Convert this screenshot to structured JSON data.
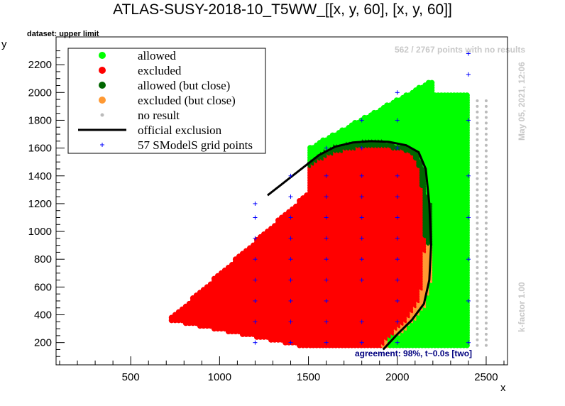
{
  "chart_data": {
    "type": "scatter",
    "title": "ATLAS-SUSY-2018-10_T5WW_[[x, y, 60], [x, y, 60]]",
    "dataset_label": "dataset: upper limit",
    "xlabel": "x",
    "ylabel": "y",
    "xlim": [
      80,
      2620
    ],
    "ylim": [
      40,
      2400
    ],
    "x_ticks": [
      500,
      1000,
      1500,
      2000,
      2500
    ],
    "y_ticks": [
      200,
      400,
      600,
      800,
      1000,
      1200,
      1400,
      1600,
      1800,
      2000,
      2200
    ],
    "side_text_top": "May 05, 2021, 12:06",
    "side_text_bottom": "k-factor 1.00",
    "no_result_text": "562 / 2767 points with no results",
    "agreement_text": "agreement: 98%, t~0.0s [two]",
    "legend": [
      {
        "label": "allowed",
        "color": "#00ff00"
      },
      {
        "label": "excluded",
        "color": "#ff0000"
      },
      {
        "label": "allowed (but close)",
        "color": "#006600"
      },
      {
        "label": "excluded (but close)",
        "color": "#ff9933"
      },
      {
        "label": "no result",
        "color": "#bbbbbb"
      },
      {
        "label": "official exclusion",
        "color": "#000000"
      },
      {
        "label": "57 SModelS grid points",
        "color": "#0000ff"
      }
    ],
    "official_exclusion": [
      [
        1270,
        1260
      ],
      [
        1350,
        1340
      ],
      [
        1450,
        1440
      ],
      [
        1560,
        1550
      ],
      [
        1650,
        1610
      ],
      [
        1750,
        1640
      ],
      [
        1850,
        1650
      ],
      [
        1950,
        1645
      ],
      [
        2050,
        1620
      ],
      [
        2120,
        1570
      ],
      [
        2160,
        1450
      ],
      [
        2180,
        1200
      ],
      [
        2190,
        900
      ],
      [
        2180,
        650
      ],
      [
        2150,
        480
      ],
      [
        2080,
        360
      ],
      [
        2000,
        260
      ],
      [
        1920,
        150
      ]
    ],
    "grid_points": [
      [
        1200,
        200
      ],
      [
        1200,
        350
      ],
      [
        1200,
        500
      ],
      [
        1200,
        650
      ],
      [
        1200,
        800
      ],
      [
        1200,
        950
      ],
      [
        1200,
        1100
      ],
      [
        1200,
        1200
      ],
      [
        1400,
        200
      ],
      [
        1400,
        350
      ],
      [
        1400,
        500
      ],
      [
        1400,
        650
      ],
      [
        1400,
        800
      ],
      [
        1400,
        950
      ],
      [
        1400,
        1100
      ],
      [
        1400,
        1250
      ],
      [
        1400,
        1400
      ],
      [
        1600,
        200
      ],
      [
        1600,
        350
      ],
      [
        1600,
        500
      ],
      [
        1600,
        650
      ],
      [
        1600,
        800
      ],
      [
        1600,
        950
      ],
      [
        1600,
        1100
      ],
      [
        1600,
        1250
      ],
      [
        1600,
        1400
      ],
      [
        1600,
        1600
      ],
      [
        1800,
        200
      ],
      [
        1800,
        350
      ],
      [
        1800,
        650
      ],
      [
        1800,
        800
      ],
      [
        1800,
        950
      ],
      [
        1800,
        1100
      ],
      [
        1800,
        1250
      ],
      [
        1800,
        1400
      ],
      [
        1800,
        1600
      ],
      [
        1800,
        1800
      ],
      [
        2000,
        200
      ],
      [
        2000,
        350
      ],
      [
        2000,
        500
      ],
      [
        2000,
        650
      ],
      [
        2000,
        800
      ],
      [
        2000,
        950
      ],
      [
        2000,
        1100
      ],
      [
        2000,
        1250
      ],
      [
        2000,
        1400
      ],
      [
        2000,
        1600
      ],
      [
        2000,
        1800
      ],
      [
        2000,
        2000
      ],
      [
        2400,
        200
      ],
      [
        2400,
        500
      ],
      [
        2400,
        800
      ],
      [
        2400,
        1100
      ],
      [
        2400,
        1400
      ],
      [
        2400,
        1800
      ],
      [
        2400,
        2130
      ],
      [
        2400,
        2280
      ]
    ]
  }
}
